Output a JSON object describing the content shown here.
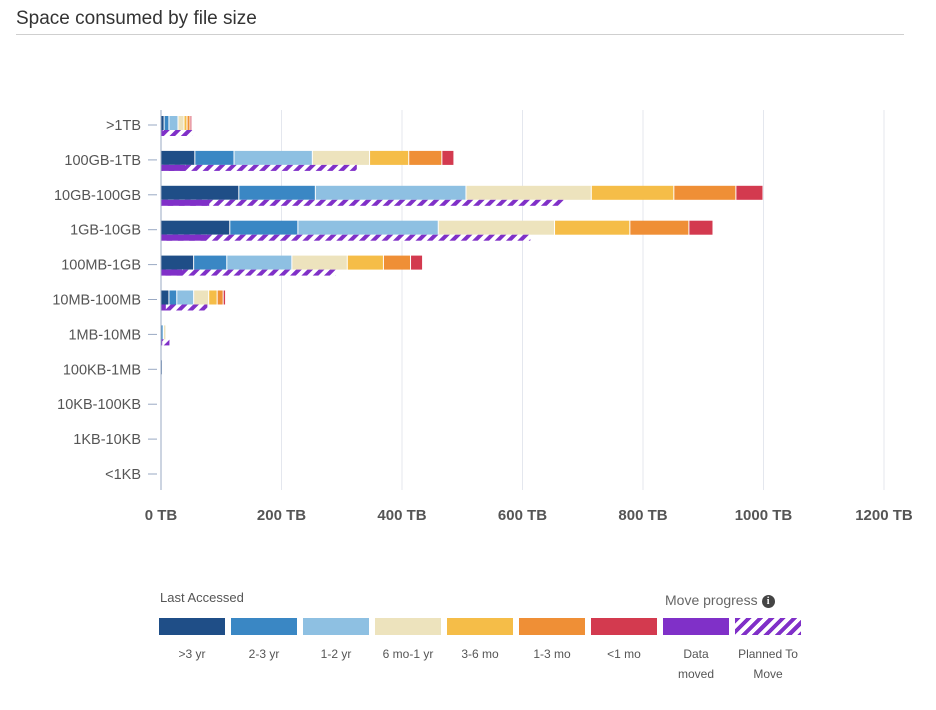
{
  "page": {
    "title": "Space consumed by file size"
  },
  "colors": {
    "gt3yr": "#1f4e87",
    "y2to3": "#3a87c4",
    "y1to2": "#8ec0e2",
    "m6to1y": "#ede3bd",
    "m3to6": "#f5bd48",
    "m1to3": "#ef8f36",
    "lt1mo": "#d33a4f",
    "moved": "#8030c8",
    "grid": "#e4e7ee",
    "axis": "#9aa9c3"
  },
  "legend": {
    "title": "Last Accessed",
    "move_title": "Move progress",
    "move_info_icon": "info-icon",
    "items": [
      {
        "key": "gt3yr",
        "label": ">3 yr"
      },
      {
        "key": "y2to3",
        "label": "2-3 yr"
      },
      {
        "key": "y1to2",
        "label": "1-2 yr"
      },
      {
        "key": "m6to1y",
        "label": "6 mo-1 yr"
      },
      {
        "key": "m3to6",
        "label": "3-6 mo"
      },
      {
        "key": "m1to3",
        "label": "1-3 mo"
      },
      {
        "key": "lt1mo",
        "label": "<1 mo"
      },
      {
        "key": "moved",
        "label": "Data moved"
      },
      {
        "key": "planned",
        "label": "Planned To Move"
      }
    ]
  },
  "chart_data": {
    "type": "bar",
    "orientation": "horizontal",
    "stacked": true,
    "title": "Space consumed by file size",
    "xlabel": "",
    "ylabel": "",
    "xlim": [
      0,
      1200
    ],
    "x_ticks": [
      "0 TB",
      "200 TB",
      "400 TB",
      "600 TB",
      "800 TB",
      "1000 TB",
      "1200 TB"
    ],
    "grid": true,
    "legend_position": "bottom",
    "categories": [
      ">1TB",
      "100GB-1TB",
      "10GB-100GB",
      "1GB-10GB",
      "100MB-1GB",
      "10MB-100MB",
      "1MB-10MB",
      "100KB-1MB",
      "10KB-100KB",
      "1KB-10KB",
      "<1KB"
    ],
    "series": [
      {
        "name": ">3 yr",
        "values": [
          6,
          57,
          130,
          115,
          55,
          14,
          1,
          1,
          0,
          0,
          0
        ]
      },
      {
        "name": "2-3 yr",
        "values": [
          8,
          65,
          127,
          113,
          55,
          13,
          1,
          0,
          0,
          0,
          0
        ]
      },
      {
        "name": "1-2 yr",
        "values": [
          15,
          130,
          250,
          233,
          108,
          28,
          3,
          0,
          0,
          0,
          0
        ]
      },
      {
        "name": "6 mo-1 yr",
        "values": [
          10,
          95,
          208,
          193,
          92,
          25,
          4,
          0,
          0,
          0,
          0
        ]
      },
      {
        "name": "3-6 mo",
        "values": [
          5,
          65,
          137,
          125,
          60,
          14,
          0,
          0,
          0,
          0,
          0
        ]
      },
      {
        "name": "1-3 mo",
        "values": [
          5,
          55,
          103,
          98,
          45,
          10,
          0,
          0,
          0,
          0,
          0
        ]
      },
      {
        "name": "<1 mo",
        "values": [
          1,
          20,
          45,
          40,
          20,
          4,
          0,
          0,
          0,
          0,
          0
        ]
      }
    ],
    "move_progress": {
      "data_moved": [
        3,
        40,
        80,
        75,
        35,
        8,
        2,
        0,
        0,
        0,
        0
      ],
      "planned_to_move": [
        52,
        325,
        668,
        613,
        290,
        77,
        14,
        0,
        0,
        0,
        0
      ]
    }
  }
}
